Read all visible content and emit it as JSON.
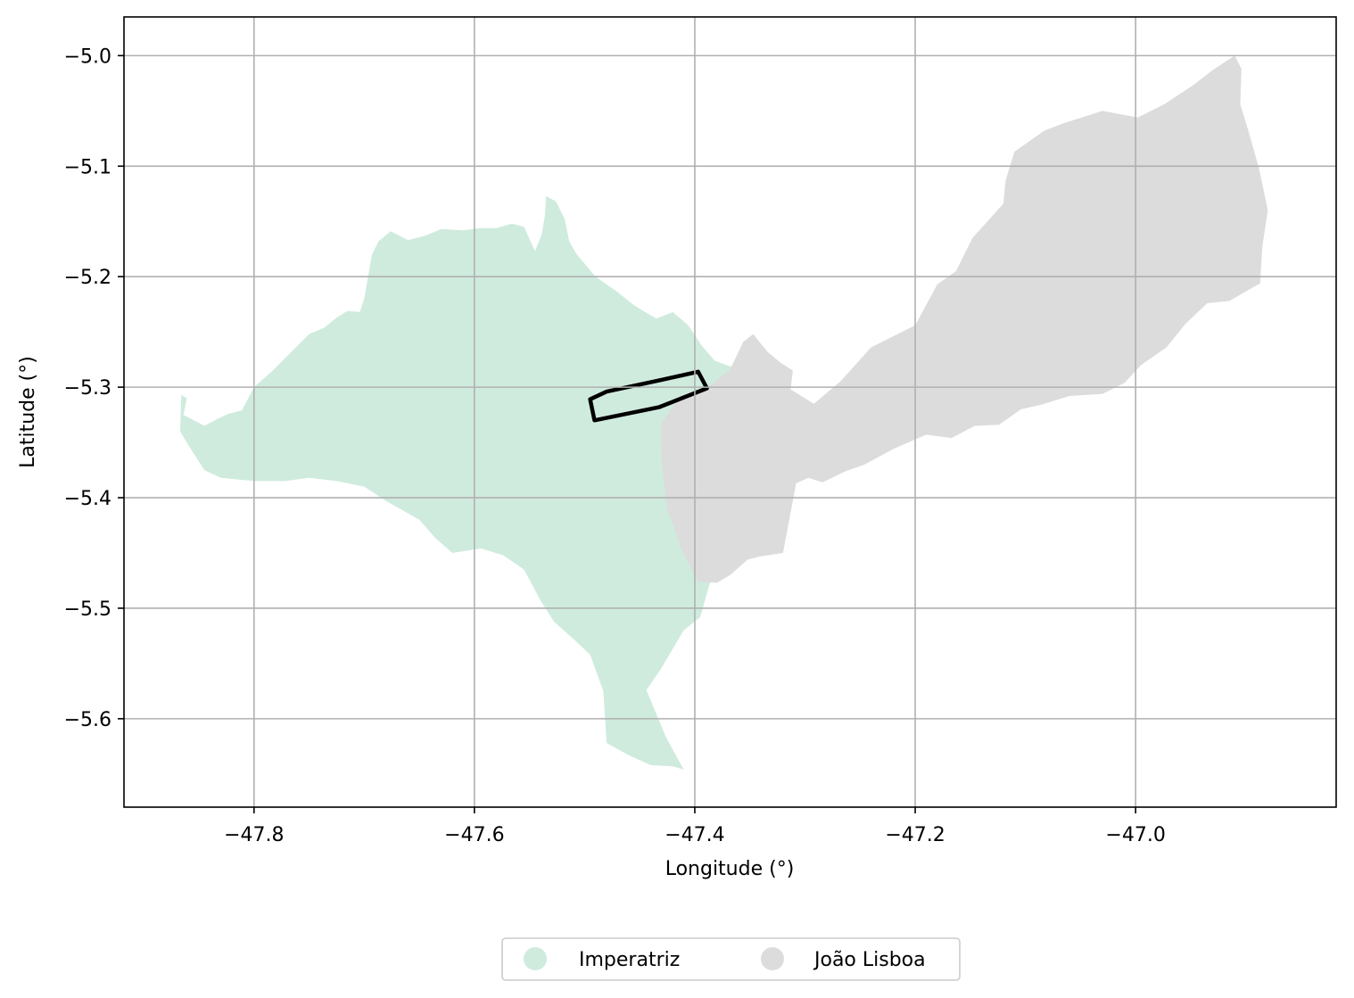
{
  "chart_data": {
    "type": "map",
    "xlabel": "Longitude (°)",
    "ylabel": "Latitude (°)",
    "xlim": [
      -47.918,
      -46.818
    ],
    "ylim": [
      -5.68,
      -4.965
    ],
    "xticks": [
      -47.8,
      -47.6,
      -47.4,
      -47.2,
      -47.0
    ],
    "xtick_labels": [
      "−47.8",
      "−47.6",
      "−47.4",
      "−47.2",
      "−47.0"
    ],
    "yticks": [
      -5.0,
      -5.1,
      -5.2,
      -5.3,
      -5.4,
      -5.5,
      -5.6
    ],
    "ytick_labels": [
      "−5.0",
      "−5.1",
      "−5.2",
      "−5.3",
      "−5.4",
      "−5.5",
      "−5.6"
    ],
    "grid": true,
    "legend_position": "bottom-center",
    "series": [
      {
        "name": "Imperatriz",
        "color": "#cfebde",
        "polygon": [
          [
            -47.866,
            -5.307
          ],
          [
            -47.861,
            -5.31
          ],
          [
            -47.864,
            -5.325
          ],
          [
            -47.845,
            -5.335
          ],
          [
            -47.834,
            -5.329
          ],
          [
            -47.823,
            -5.324
          ],
          [
            -47.811,
            -5.321
          ],
          [
            -47.8,
            -5.3
          ],
          [
            -47.783,
            -5.285
          ],
          [
            -47.768,
            -5.27
          ],
          [
            -47.75,
            -5.252
          ],
          [
            -47.736,
            -5.246
          ],
          [
            -47.725,
            -5.237
          ],
          [
            -47.715,
            -5.231
          ],
          [
            -47.704,
            -5.232
          ],
          [
            -47.7,
            -5.22
          ],
          [
            -47.693,
            -5.18
          ],
          [
            -47.687,
            -5.168
          ],
          [
            -47.676,
            -5.159
          ],
          [
            -47.66,
            -5.167
          ],
          [
            -47.645,
            -5.163
          ],
          [
            -47.63,
            -5.157
          ],
          [
            -47.61,
            -5.158
          ],
          [
            -47.595,
            -5.156
          ],
          [
            -47.58,
            -5.156
          ],
          [
            -47.566,
            -5.152
          ],
          [
            -47.555,
            -5.155
          ],
          [
            -47.545,
            -5.177
          ],
          [
            -47.539,
            -5.162
          ],
          [
            -47.536,
            -5.145
          ],
          [
            -47.535,
            -5.127
          ],
          [
            -47.526,
            -5.132
          ],
          [
            -47.518,
            -5.148
          ],
          [
            -47.514,
            -5.168
          ],
          [
            -47.507,
            -5.18
          ],
          [
            -47.49,
            -5.2
          ],
          [
            -47.47,
            -5.214
          ],
          [
            -47.455,
            -5.226
          ],
          [
            -47.435,
            -5.238
          ],
          [
            -47.42,
            -5.232
          ],
          [
            -47.406,
            -5.244
          ],
          [
            -47.394,
            -5.262
          ],
          [
            -47.382,
            -5.276
          ],
          [
            -47.366,
            -5.282
          ],
          [
            -47.37,
            -5.296
          ],
          [
            -47.375,
            -5.312
          ],
          [
            -47.383,
            -5.326
          ],
          [
            -47.385,
            -5.37
          ],
          [
            -47.387,
            -5.42
          ],
          [
            -47.382,
            -5.464
          ],
          [
            -47.388,
            -5.483
          ],
          [
            -47.395,
            -5.508
          ],
          [
            -47.41,
            -5.52
          ],
          [
            -47.432,
            -5.557
          ],
          [
            -47.444,
            -5.574
          ],
          [
            -47.426,
            -5.617
          ],
          [
            -47.41,
            -5.646
          ],
          [
            -47.42,
            -5.643
          ],
          [
            -47.44,
            -5.642
          ],
          [
            -47.46,
            -5.633
          ],
          [
            -47.48,
            -5.622
          ],
          [
            -47.483,
            -5.575
          ],
          [
            -47.495,
            -5.542
          ],
          [
            -47.51,
            -5.528
          ],
          [
            -47.528,
            -5.512
          ],
          [
            -47.54,
            -5.493
          ],
          [
            -47.555,
            -5.465
          ],
          [
            -47.574,
            -5.452
          ],
          [
            -47.594,
            -5.446
          ],
          [
            -47.62,
            -5.45
          ],
          [
            -47.635,
            -5.437
          ],
          [
            -47.65,
            -5.42
          ],
          [
            -47.68,
            -5.403
          ],
          [
            -47.7,
            -5.39
          ],
          [
            -47.725,
            -5.385
          ],
          [
            -47.75,
            -5.382
          ],
          [
            -47.772,
            -5.385
          ],
          [
            -47.8,
            -5.385
          ],
          [
            -47.83,
            -5.382
          ],
          [
            -47.845,
            -5.375
          ],
          [
            -47.858,
            -5.355
          ],
          [
            -47.867,
            -5.34
          ]
        ]
      },
      {
        "name": "João Lisboa",
        "color": "#dcdcdc",
        "polygon": [
          [
            -47.431,
            -5.333
          ],
          [
            -47.413,
            -5.308
          ],
          [
            -47.388,
            -5.3
          ],
          [
            -47.368,
            -5.284
          ],
          [
            -47.356,
            -5.259
          ],
          [
            -47.347,
            -5.252
          ],
          [
            -47.334,
            -5.268
          ],
          [
            -47.322,
            -5.278
          ],
          [
            -47.311,
            -5.285
          ],
          [
            -47.313,
            -5.302
          ],
          [
            -47.292,
            -5.315
          ],
          [
            -47.268,
            -5.295
          ],
          [
            -47.24,
            -5.264
          ],
          [
            -47.2,
            -5.244
          ],
          [
            -47.18,
            -5.207
          ],
          [
            -47.163,
            -5.195
          ],
          [
            -47.148,
            -5.165
          ],
          [
            -47.12,
            -5.134
          ],
          [
            -47.118,
            -5.113
          ],
          [
            -47.11,
            -5.087
          ],
          [
            -47.083,
            -5.068
          ],
          [
            -47.065,
            -5.061
          ],
          [
            -47.03,
            -5.05
          ],
          [
            -46.998,
            -5.056
          ],
          [
            -46.974,
            -5.044
          ],
          [
            -46.948,
            -5.027
          ],
          [
            -46.93,
            -5.013
          ],
          [
            -46.91,
            -5.0
          ],
          [
            -46.904,
            -5.012
          ],
          [
            -46.905,
            -5.044
          ],
          [
            -46.898,
            -5.067
          ],
          [
            -46.888,
            -5.102
          ],
          [
            -46.88,
            -5.14
          ],
          [
            -46.885,
            -5.173
          ],
          [
            -46.887,
            -5.206
          ],
          [
            -46.915,
            -5.222
          ],
          [
            -46.935,
            -5.224
          ],
          [
            -46.955,
            -5.243
          ],
          [
            -46.972,
            -5.264
          ],
          [
            -46.995,
            -5.28
          ],
          [
            -47.01,
            -5.296
          ],
          [
            -47.03,
            -5.306
          ],
          [
            -47.06,
            -5.308
          ],
          [
            -47.086,
            -5.316
          ],
          [
            -47.104,
            -5.32
          ],
          [
            -47.124,
            -5.334
          ],
          [
            -47.146,
            -5.335
          ],
          [
            -47.167,
            -5.346
          ],
          [
            -47.19,
            -5.343
          ],
          [
            -47.22,
            -5.356
          ],
          [
            -47.246,
            -5.37
          ],
          [
            -47.263,
            -5.376
          ],
          [
            -47.284,
            -5.386
          ],
          [
            -47.297,
            -5.382
          ],
          [
            -47.308,
            -5.387
          ],
          [
            -47.32,
            -5.45
          ],
          [
            -47.34,
            -5.453
          ],
          [
            -47.352,
            -5.456
          ],
          [
            -47.368,
            -5.47
          ],
          [
            -47.38,
            -5.477
          ],
          [
            -47.397,
            -5.476
          ],
          [
            -47.412,
            -5.447
          ],
          [
            -47.425,
            -5.41
          ],
          [
            -47.43,
            -5.37
          ]
        ]
      }
    ],
    "highlight_polygon": [
      [
        -47.495,
        -5.311
      ],
      [
        -47.48,
        -5.304
      ],
      [
        -47.433,
        -5.294
      ],
      [
        -47.397,
        -5.286
      ],
      [
        -47.389,
        -5.301
      ],
      [
        -47.432,
        -5.318
      ],
      [
        -47.491,
        -5.33
      ]
    ],
    "legend": [
      {
        "label": "Imperatriz",
        "color": "#cfebde"
      },
      {
        "label": "João Lisboa",
        "color": "#dcdcdc"
      }
    ]
  }
}
